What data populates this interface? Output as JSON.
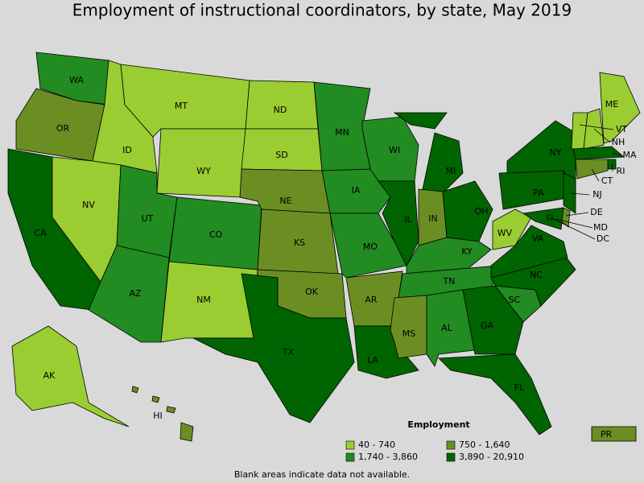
{
  "title": "Employment of instructional coordinators, by state, May 2019",
  "legend": {
    "title": "Employment",
    "items": [
      {
        "label": "40 - 740",
        "color": "#9acd32"
      },
      {
        "label": "750 - 1,640",
        "color": "#6b8e23"
      },
      {
        "label": "1,740 - 3,860",
        "color": "#228b22"
      },
      {
        "label": "3,890 - 20,910",
        "color": "#006400"
      }
    ]
  },
  "states": [
    {
      "abbr": "WA",
      "bin": 2
    },
    {
      "abbr": "OR",
      "bin": 1
    },
    {
      "abbr": "CA",
      "bin": 3
    },
    {
      "abbr": "NV",
      "bin": 0
    },
    {
      "abbr": "ID",
      "bin": 0
    },
    {
      "abbr": "MT",
      "bin": 0
    },
    {
      "abbr": "WY",
      "bin": 0
    },
    {
      "abbr": "UT",
      "bin": 2
    },
    {
      "abbr": "CO",
      "bin": 2
    },
    {
      "abbr": "AZ",
      "bin": 2
    },
    {
      "abbr": "NM",
      "bin": 0
    },
    {
      "abbr": "ND",
      "bin": 0
    },
    {
      "abbr": "SD",
      "bin": 0
    },
    {
      "abbr": "NE",
      "bin": 1
    },
    {
      "abbr": "KS",
      "bin": 1
    },
    {
      "abbr": "OK",
      "bin": 1
    },
    {
      "abbr": "TX",
      "bin": 3
    },
    {
      "abbr": "MN",
      "bin": 2
    },
    {
      "abbr": "IA",
      "bin": 2
    },
    {
      "abbr": "MO",
      "bin": 2
    },
    {
      "abbr": "AR",
      "bin": 1
    },
    {
      "abbr": "LA",
      "bin": 3
    },
    {
      "abbr": "WI",
      "bin": 2
    },
    {
      "abbr": "IL",
      "bin": 3
    },
    {
      "abbr": "MI",
      "bin": 3
    },
    {
      "abbr": "IN",
      "bin": 1
    },
    {
      "abbr": "OH",
      "bin": 3
    },
    {
      "abbr": "KY",
      "bin": 2
    },
    {
      "abbr": "TN",
      "bin": 2
    },
    {
      "abbr": "MS",
      "bin": 1
    },
    {
      "abbr": "AL",
      "bin": 2
    },
    {
      "abbr": "GA",
      "bin": 3
    },
    {
      "abbr": "FL",
      "bin": 3
    },
    {
      "abbr": "SC",
      "bin": 2
    },
    {
      "abbr": "NC",
      "bin": 3
    },
    {
      "abbr": "VA",
      "bin": 3
    },
    {
      "abbr": "WV",
      "bin": 0
    },
    {
      "abbr": "PA",
      "bin": 3
    },
    {
      "abbr": "NY",
      "bin": 3
    },
    {
      "abbr": "VT",
      "bin": 0
    },
    {
      "abbr": "NH",
      "bin": 0
    },
    {
      "abbr": "ME",
      "bin": 0
    },
    {
      "abbr": "MA",
      "bin": 3
    },
    {
      "abbr": "RI",
      "bin": 3
    },
    {
      "abbr": "CT",
      "bin": 1
    },
    {
      "abbr": "NJ",
      "bin": 3
    },
    {
      "abbr": "DE",
      "bin": 1
    },
    {
      "abbr": "MD",
      "bin": 3
    },
    {
      "abbr": "DC",
      "bin": 3
    },
    {
      "abbr": "AK",
      "bin": 0
    },
    {
      "abbr": "HI",
      "bin": 1
    },
    {
      "abbr": "PR",
      "bin": 1
    }
  ],
  "note": "Blank areas indicate data not available."
}
